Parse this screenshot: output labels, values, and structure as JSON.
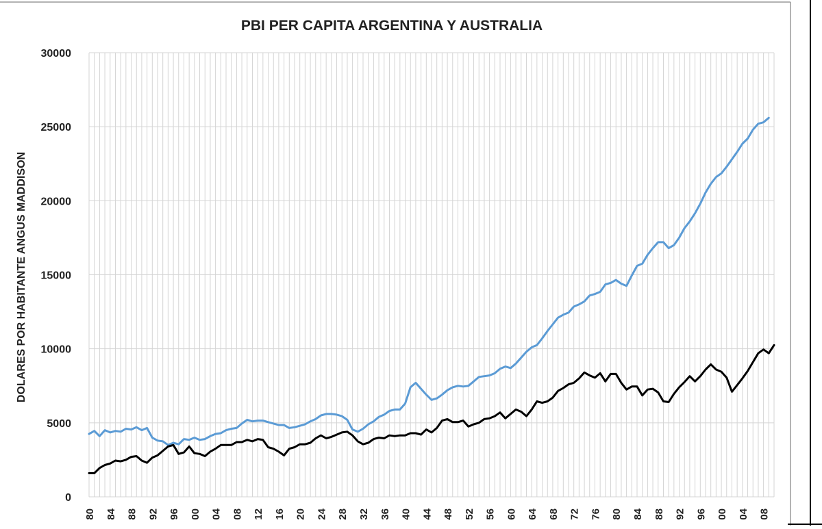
{
  "chart_data": {
    "type": "line",
    "title": "PBI PER CAPITA ARGENTINA  Y AUSTRALIA",
    "xlabel": "",
    "ylabel": "DOLARES POR HABITANTE ANGUS MADDISON",
    "ylim": [
      0,
      30000
    ],
    "yticks": [
      "0",
      "5000",
      "10000",
      "15000",
      "20000",
      "25000",
      "30000"
    ],
    "xlim": [
      1880,
      2010
    ],
    "xticks": [
      {
        "year": 1880,
        "label": "80"
      },
      {
        "year": 1884,
        "label": "84"
      },
      {
        "year": 1888,
        "label": "88"
      },
      {
        "year": 1892,
        "label": "92"
      },
      {
        "year": 1896,
        "label": "96"
      },
      {
        "year": 1900,
        "label": "00"
      },
      {
        "year": 1904,
        "label": "04"
      },
      {
        "year": 1908,
        "label": "08"
      },
      {
        "year": 1912,
        "label": "12"
      },
      {
        "year": 1916,
        "label": "16"
      },
      {
        "year": 1920,
        "label": "20"
      },
      {
        "year": 1924,
        "label": "24"
      },
      {
        "year": 1928,
        "label": "28"
      },
      {
        "year": 1932,
        "label": "32"
      },
      {
        "year": 1936,
        "label": "36"
      },
      {
        "year": 1940,
        "label": "40"
      },
      {
        "year": 1944,
        "label": "44"
      },
      {
        "year": 1948,
        "label": "48"
      },
      {
        "year": 1952,
        "label": "52"
      },
      {
        "year": 1956,
        "label": "56"
      },
      {
        "year": 1960,
        "label": "60"
      },
      {
        "year": 1964,
        "label": "64"
      },
      {
        "year": 1968,
        "label": "68"
      },
      {
        "year": 1972,
        "label": "72"
      },
      {
        "year": 1976,
        "label": "76"
      },
      {
        "year": 1980,
        "label": "80"
      },
      {
        "year": 1984,
        "label": "84"
      },
      {
        "year": 1988,
        "label": "88"
      },
      {
        "year": 1992,
        "label": "92"
      },
      {
        "year": 1996,
        "label": "96"
      },
      {
        "year": 2000,
        "label": "00"
      },
      {
        "year": 2004,
        "label": "04"
      },
      {
        "year": 2008,
        "label": "08"
      }
    ],
    "grid": true,
    "legend": "none",
    "series": [
      {
        "color": "#5b9bd5",
        "points": [
          [
            1880,
            4250
          ],
          [
            1881,
            4450
          ],
          [
            1882,
            4100
          ],
          [
            1883,
            4500
          ],
          [
            1884,
            4350
          ],
          [
            1885,
            4450
          ],
          [
            1886,
            4400
          ],
          [
            1887,
            4600
          ],
          [
            1888,
            4550
          ],
          [
            1889,
            4700
          ],
          [
            1890,
            4500
          ],
          [
            1891,
            4650
          ],
          [
            1892,
            4000
          ],
          [
            1893,
            3800
          ],
          [
            1894,
            3750
          ],
          [
            1895,
            3500
          ],
          [
            1896,
            3650
          ],
          [
            1897,
            3550
          ],
          [
            1898,
            3900
          ],
          [
            1899,
            3850
          ],
          [
            1900,
            4000
          ],
          [
            1901,
            3850
          ],
          [
            1902,
            3900
          ],
          [
            1903,
            4100
          ],
          [
            1904,
            4250
          ],
          [
            1905,
            4300
          ],
          [
            1906,
            4500
          ],
          [
            1907,
            4600
          ],
          [
            1908,
            4650
          ],
          [
            1909,
            4950
          ],
          [
            1910,
            5200
          ],
          [
            1911,
            5100
          ],
          [
            1912,
            5150
          ],
          [
            1913,
            5150
          ],
          [
            1914,
            5050
          ],
          [
            1915,
            4950
          ],
          [
            1916,
            4850
          ],
          [
            1917,
            4850
          ],
          [
            1918,
            4650
          ],
          [
            1919,
            4700
          ],
          [
            1920,
            4800
          ],
          [
            1921,
            4900
          ],
          [
            1922,
            5100
          ],
          [
            1923,
            5250
          ],
          [
            1924,
            5500
          ],
          [
            1925,
            5600
          ],
          [
            1926,
            5600
          ],
          [
            1927,
            5550
          ],
          [
            1928,
            5450
          ],
          [
            1929,
            5200
          ],
          [
            1930,
            4550
          ],
          [
            1931,
            4400
          ],
          [
            1932,
            4600
          ],
          [
            1933,
            4900
          ],
          [
            1934,
            5100
          ],
          [
            1935,
            5400
          ],
          [
            1936,
            5550
          ],
          [
            1937,
            5800
          ],
          [
            1938,
            5900
          ],
          [
            1939,
            5900
          ],
          [
            1940,
            6300
          ],
          [
            1941,
            7400
          ],
          [
            1942,
            7700
          ],
          [
            1943,
            7300
          ],
          [
            1944,
            6900
          ],
          [
            1945,
            6550
          ],
          [
            1946,
            6650
          ],
          [
            1947,
            6900
          ],
          [
            1948,
            7200
          ],
          [
            1949,
            7400
          ],
          [
            1950,
            7500
          ],
          [
            1951,
            7450
          ],
          [
            1952,
            7500
          ],
          [
            1953,
            7800
          ],
          [
            1954,
            8100
          ],
          [
            1955,
            8150
          ],
          [
            1956,
            8200
          ],
          [
            1957,
            8350
          ],
          [
            1958,
            8650
          ],
          [
            1959,
            8800
          ],
          [
            1960,
            8700
          ],
          [
            1961,
            9000
          ],
          [
            1962,
            9400
          ],
          [
            1963,
            9800
          ],
          [
            1964,
            10100
          ],
          [
            1965,
            10250
          ],
          [
            1966,
            10700
          ],
          [
            1967,
            11200
          ],
          [
            1968,
            11650
          ],
          [
            1969,
            12100
          ],
          [
            1970,
            12300
          ],
          [
            1971,
            12450
          ],
          [
            1972,
            12850
          ],
          [
            1973,
            13000
          ],
          [
            1974,
            13200
          ],
          [
            1975,
            13600
          ],
          [
            1976,
            13700
          ],
          [
            1977,
            13850
          ],
          [
            1978,
            14350
          ],
          [
            1979,
            14450
          ],
          [
            1980,
            14650
          ],
          [
            1981,
            14400
          ],
          [
            1982,
            14250
          ],
          [
            1983,
            14950
          ],
          [
            1984,
            15600
          ],
          [
            1985,
            15750
          ],
          [
            1986,
            16350
          ],
          [
            1987,
            16800
          ],
          [
            1988,
            17200
          ],
          [
            1989,
            17200
          ],
          [
            1990,
            16800
          ],
          [
            1991,
            17000
          ],
          [
            1992,
            17500
          ],
          [
            1993,
            18150
          ],
          [
            1994,
            18600
          ],
          [
            1995,
            19150
          ],
          [
            1996,
            19800
          ],
          [
            1997,
            20550
          ],
          [
            1998,
            21150
          ],
          [
            1999,
            21600
          ],
          [
            2000,
            21850
          ],
          [
            2001,
            22300
          ],
          [
            2002,
            22800
          ],
          [
            2003,
            23300
          ],
          [
            2004,
            23850
          ],
          [
            2005,
            24200
          ],
          [
            2006,
            24800
          ],
          [
            2007,
            25200
          ],
          [
            2008,
            25300
          ],
          [
            2009,
            25600
          ]
        ]
      },
      {
        "color": "#000000",
        "points": [
          [
            1880,
            1600
          ],
          [
            1881,
            1600
          ],
          [
            1882,
            1950
          ],
          [
            1883,
            2150
          ],
          [
            1884,
            2250
          ],
          [
            1885,
            2450
          ],
          [
            1886,
            2400
          ],
          [
            1887,
            2500
          ],
          [
            1888,
            2700
          ],
          [
            1889,
            2750
          ],
          [
            1890,
            2450
          ],
          [
            1891,
            2300
          ],
          [
            1892,
            2650
          ],
          [
            1893,
            2800
          ],
          [
            1894,
            3100
          ],
          [
            1895,
            3400
          ],
          [
            1896,
            3500
          ],
          [
            1897,
            2900
          ],
          [
            1898,
            3000
          ],
          [
            1899,
            3400
          ],
          [
            1900,
            2950
          ],
          [
            1901,
            2900
          ],
          [
            1902,
            2750
          ],
          [
            1903,
            3050
          ],
          [
            1904,
            3250
          ],
          [
            1905,
            3500
          ],
          [
            1906,
            3500
          ],
          [
            1907,
            3500
          ],
          [
            1908,
            3700
          ],
          [
            1909,
            3700
          ],
          [
            1910,
            3850
          ],
          [
            1911,
            3750
          ],
          [
            1912,
            3900
          ],
          [
            1913,
            3850
          ],
          [
            1914,
            3350
          ],
          [
            1915,
            3250
          ],
          [
            1916,
            3050
          ],
          [
            1917,
            2800
          ],
          [
            1918,
            3250
          ],
          [
            1919,
            3350
          ],
          [
            1920,
            3550
          ],
          [
            1921,
            3550
          ],
          [
            1922,
            3650
          ],
          [
            1923,
            3950
          ],
          [
            1924,
            4150
          ],
          [
            1925,
            3950
          ],
          [
            1926,
            4050
          ],
          [
            1927,
            4200
          ],
          [
            1928,
            4350
          ],
          [
            1929,
            4400
          ],
          [
            1930,
            4150
          ],
          [
            1931,
            3750
          ],
          [
            1932,
            3550
          ],
          [
            1933,
            3650
          ],
          [
            1934,
            3900
          ],
          [
            1935,
            4000
          ],
          [
            1936,
            3950
          ],
          [
            1937,
            4150
          ],
          [
            1938,
            4100
          ],
          [
            1939,
            4150
          ],
          [
            1940,
            4150
          ],
          [
            1941,
            4300
          ],
          [
            1942,
            4300
          ],
          [
            1943,
            4200
          ],
          [
            1944,
            4550
          ],
          [
            1945,
            4350
          ],
          [
            1946,
            4650
          ],
          [
            1947,
            5150
          ],
          [
            1948,
            5250
          ],
          [
            1949,
            5050
          ],
          [
            1950,
            5050
          ],
          [
            1951,
            5150
          ],
          [
            1952,
            4750
          ],
          [
            1953,
            4900
          ],
          [
            1954,
            5000
          ],
          [
            1955,
            5250
          ],
          [
            1956,
            5300
          ],
          [
            1957,
            5450
          ],
          [
            1958,
            5700
          ],
          [
            1959,
            5300
          ],
          [
            1960,
            5600
          ],
          [
            1961,
            5900
          ],
          [
            1962,
            5750
          ],
          [
            1963,
            5450
          ],
          [
            1964,
            5900
          ],
          [
            1965,
            6450
          ],
          [
            1966,
            6350
          ],
          [
            1967,
            6450
          ],
          [
            1968,
            6700
          ],
          [
            1969,
            7150
          ],
          [
            1970,
            7350
          ],
          [
            1971,
            7600
          ],
          [
            1972,
            7700
          ],
          [
            1973,
            8000
          ],
          [
            1974,
            8400
          ],
          [
            1975,
            8200
          ],
          [
            1976,
            8050
          ],
          [
            1977,
            8350
          ],
          [
            1978,
            7800
          ],
          [
            1979,
            8300
          ],
          [
            1980,
            8300
          ],
          [
            1981,
            7700
          ],
          [
            1982,
            7250
          ],
          [
            1983,
            7450
          ],
          [
            1984,
            7450
          ],
          [
            1985,
            6850
          ],
          [
            1986,
            7250
          ],
          [
            1987,
            7300
          ],
          [
            1988,
            7050
          ],
          [
            1989,
            6450
          ],
          [
            1990,
            6400
          ],
          [
            1991,
            6950
          ],
          [
            1992,
            7400
          ],
          [
            1993,
            7750
          ],
          [
            1994,
            8150
          ],
          [
            1995,
            7800
          ],
          [
            1996,
            8150
          ],
          [
            1997,
            8600
          ],
          [
            1998,
            8950
          ],
          [
            1999,
            8600
          ],
          [
            2000,
            8450
          ],
          [
            2001,
            8050
          ],
          [
            2002,
            7100
          ],
          [
            2003,
            7550
          ],
          [
            2004,
            8000
          ],
          [
            2005,
            8500
          ],
          [
            2006,
            9100
          ],
          [
            2007,
            9700
          ],
          [
            2008,
            9950
          ],
          [
            2009,
            9700
          ],
          [
            2010,
            10250
          ]
        ]
      }
    ]
  }
}
